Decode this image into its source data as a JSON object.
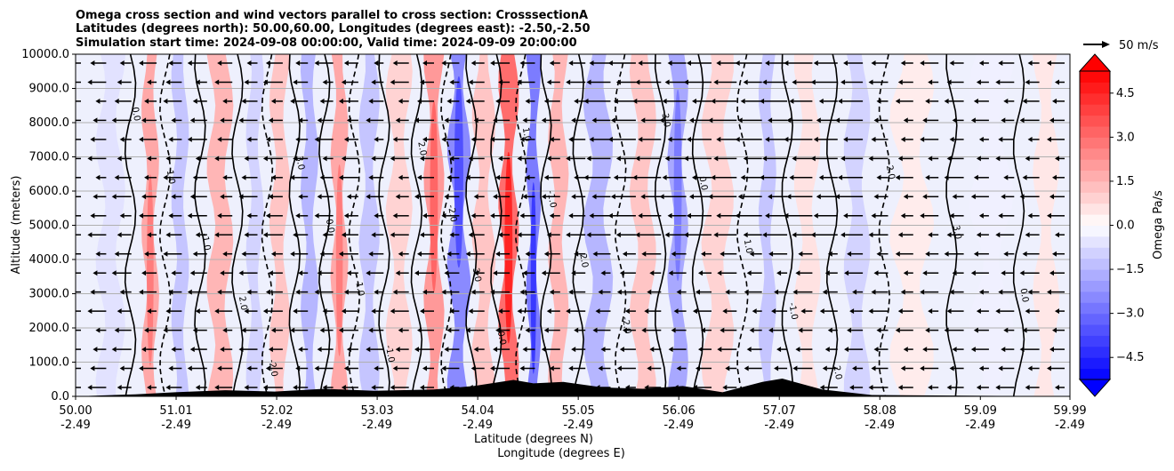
{
  "chart_data": {
    "type": "heatmap",
    "title_lines": [
      "Omega cross section and wind vectors parallel to cross section: CrosssectionA",
      "Latitudes (degrees north): 50.00,60.00, Longitudes (degrees east): -2.50,-2.50",
      "Simulation start time: 2024-09-08 00:00:00, Valid time: 2024-09-09 20:00:00"
    ],
    "ylabel": "Altitude (meters)",
    "xlabel_lat": "Latitude (degrees N)",
    "xlabel_lon": "Longitude (degrees E)",
    "ylim": [
      0,
      10000
    ],
    "y_ticks": [
      "0.0",
      "1000.0",
      "2000.0",
      "3000.0",
      "4000.0",
      "5000.0",
      "6000.0",
      "7000.0",
      "8000.0",
      "9000.0",
      "10000.0"
    ],
    "xlim": [
      50.0,
      59.99
    ],
    "x_ticks": [
      {
        "lat": "50.00",
        "lon": "-2.49"
      },
      {
        "lat": "51.01",
        "lon": "-2.49"
      },
      {
        "lat": "52.02",
        "lon": "-2.49"
      },
      {
        "lat": "53.03",
        "lon": "-2.49"
      },
      {
        "lat": "54.04",
        "lon": "-2.49"
      },
      {
        "lat": "55.05",
        "lon": "-2.49"
      },
      {
        "lat": "56.06",
        "lon": "-2.49"
      },
      {
        "lat": "57.07",
        "lon": "-2.49"
      },
      {
        "lat": "58.08",
        "lon": "-2.49"
      },
      {
        "lat": "59.09",
        "lon": "-2.49"
      },
      {
        "lat": "59.99",
        "lon": "-2.49"
      }
    ],
    "colorbar": {
      "label": "Omega Pa/s",
      "range": [
        -5.25,
        5.25
      ],
      "ticks": [
        "4.5",
        "3.0",
        "1.5",
        "0.0",
        "−1.5",
        "−3.0",
        "−4.5"
      ],
      "tick_values": [
        4.5,
        3.0,
        1.5,
        0.0,
        -1.5,
        -3.0,
        -4.5
      ],
      "extend": "both",
      "low_color": "#0000ff",
      "mid_color": "#ffffff",
      "high_color": "#ff0000"
    },
    "vector_key": {
      "label": "50 m/s",
      "speed": 50
    },
    "omega_bands": [
      {
        "lat": 50.35,
        "width": 0.2,
        "value": -0.6
      },
      {
        "lat": 50.75,
        "width": 0.12,
        "value": 1.8
      },
      {
        "lat": 51.05,
        "width": 0.12,
        "value": -1.2
      },
      {
        "lat": 51.45,
        "width": 0.18,
        "value": 1.5
      },
      {
        "lat": 51.8,
        "width": 0.12,
        "value": -0.9
      },
      {
        "lat": 52.05,
        "width": 0.14,
        "value": 1.2
      },
      {
        "lat": 52.35,
        "width": 0.12,
        "value": -1.5
      },
      {
        "lat": 52.65,
        "width": 0.12,
        "value": 1.8
      },
      {
        "lat": 52.95,
        "width": 0.14,
        "value": -1.2
      },
      {
        "lat": 53.25,
        "width": 0.18,
        "value": 0.9
      },
      {
        "lat": 53.6,
        "width": 0.14,
        "value": 2.1
      },
      {
        "lat": 53.85,
        "width": 0.16,
        "value": -2.4
      },
      {
        "lat": 54.1,
        "width": 0.16,
        "value": 1.2
      },
      {
        "lat": 54.35,
        "width": 0.14,
        "value": 3.0
      },
      {
        "lat": 54.6,
        "width": 0.1,
        "value": -2.7
      },
      {
        "lat": 54.85,
        "width": 0.14,
        "value": 1.5
      },
      {
        "lat": 55.25,
        "width": 0.2,
        "value": -1.5
      },
      {
        "lat": 55.7,
        "width": 0.18,
        "value": 1.2
      },
      {
        "lat": 56.05,
        "width": 0.14,
        "value": -1.8
      },
      {
        "lat": 56.45,
        "width": 0.22,
        "value": 0.9
      },
      {
        "lat": 56.95,
        "width": 0.12,
        "value": -1.2
      },
      {
        "lat": 57.35,
        "width": 0.18,
        "value": 0.6
      },
      {
        "lat": 57.85,
        "width": 0.18,
        "value": -0.9
      },
      {
        "lat": 58.4,
        "width": 0.3,
        "value": 0.4
      },
      {
        "lat": 59.2,
        "width": 0.3,
        "value": -0.3
      },
      {
        "lat": 59.75,
        "width": 0.18,
        "value": 0.5
      }
    ],
    "contour_level_labels": [
      "0.0",
      "1.0",
      "-1.0",
      "2.0",
      "-2.0",
      "3.0"
    ],
    "terrain": [
      {
        "lat": 50.0,
        "h": 0
      },
      {
        "lat": 50.6,
        "h": 60
      },
      {
        "lat": 51.0,
        "h": 120
      },
      {
        "lat": 51.5,
        "h": 180
      },
      {
        "lat": 52.0,
        "h": 140
      },
      {
        "lat": 52.5,
        "h": 220
      },
      {
        "lat": 53.0,
        "h": 160
      },
      {
        "lat": 53.6,
        "h": 200
      },
      {
        "lat": 54.0,
        "h": 300
      },
      {
        "lat": 54.4,
        "h": 480
      },
      {
        "lat": 54.6,
        "h": 380
      },
      {
        "lat": 54.9,
        "h": 420
      },
      {
        "lat": 55.3,
        "h": 260
      },
      {
        "lat": 55.7,
        "h": 220
      },
      {
        "lat": 56.1,
        "h": 300
      },
      {
        "lat": 56.5,
        "h": 120
      },
      {
        "lat": 56.9,
        "h": 420
      },
      {
        "lat": 57.1,
        "h": 520
      },
      {
        "lat": 57.5,
        "h": 200
      },
      {
        "lat": 58.0,
        "h": 40
      },
      {
        "lat": 59.99,
        "h": 0
      }
    ]
  }
}
